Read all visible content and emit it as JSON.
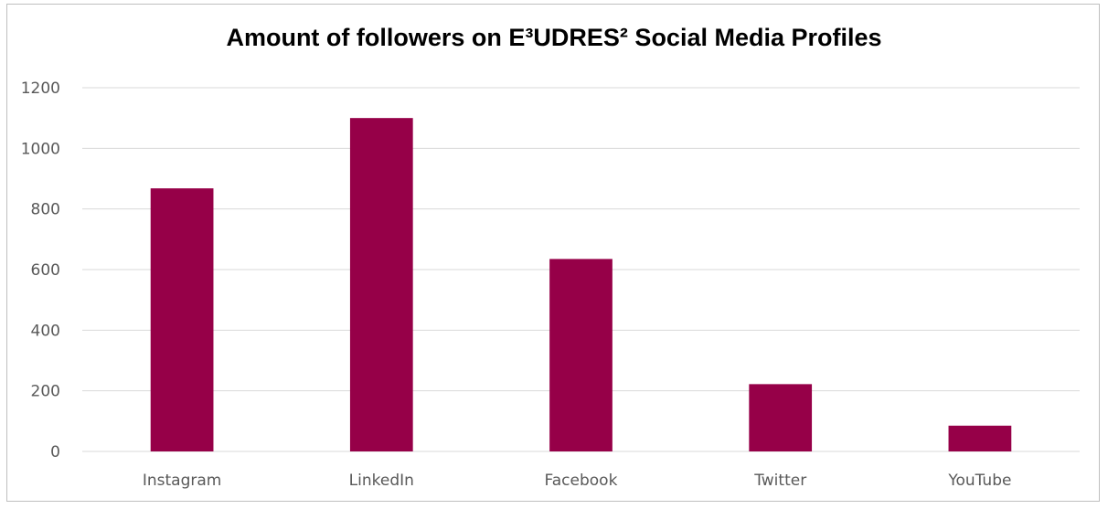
{
  "chart_data": {
    "type": "bar",
    "title": "Amount of followers on E³UDRES² Social Media Profiles",
    "xlabel": "",
    "ylabel": "",
    "categories": [
      "Instagram",
      "LinkedIn",
      "Facebook",
      "Twitter",
      "YouTube"
    ],
    "values": [
      868,
      1100,
      635,
      222,
      85
    ],
    "ylim": [
      0,
      1200
    ],
    "yticks": [
      "0",
      "200",
      "400",
      "600",
      "800",
      "1000",
      "1200"
    ],
    "bar_color": "#960048",
    "grid": true,
    "legend": "none"
  }
}
